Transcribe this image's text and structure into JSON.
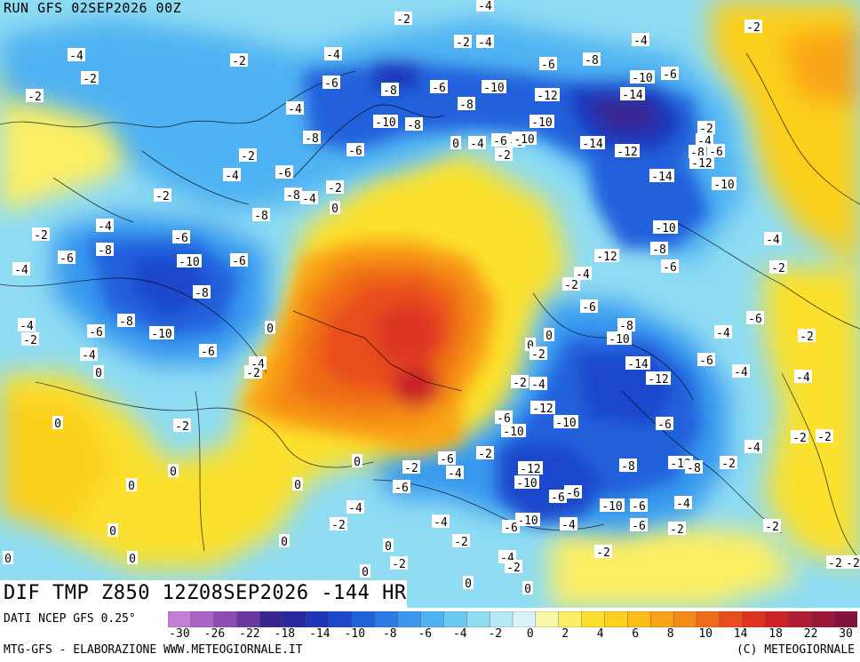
{
  "header": {
    "run_label": "RUN GFS 02SEP2026 00Z"
  },
  "map_title": "DIF TMP Z850 12Z08SEP2026 -144 HR",
  "source": "DATI NCEP GFS 0.25°",
  "footer": {
    "left": "MTG-GFS - ELABORAZIONE WWW.METEOGIORNALE.IT",
    "right": "(C) METEOGIORNALE"
  },
  "legend": {
    "tick_labels": [
      "-30",
      "-26",
      "-22",
      "-18",
      "-14",
      "-10",
      "-8",
      "-6",
      "-4",
      "-2",
      "0",
      "2",
      "4",
      "6",
      "8",
      "10",
      "14",
      "18",
      "22",
      "30"
    ],
    "colors": [
      "#c27fd6",
      "#a864c7",
      "#8f4bb5",
      "#6a37a0",
      "#3a2590",
      "#28289e",
      "#1f35b8",
      "#1d47cc",
      "#2060dc",
      "#2a7be6",
      "#3998ee",
      "#4fb2f2",
      "#6bcaf3",
      "#8fdcf3",
      "#b5eaf6",
      "#d8f4f8",
      "#fbf7a8",
      "#fbee63",
      "#fbe12d",
      "#fbd01f",
      "#fbbc1a",
      "#f9a417",
      "#f58a17",
      "#ef6c19",
      "#e84e1c",
      "#dc3420",
      "#ca2428",
      "#b21c32",
      "#9c1638",
      "#83123c"
    ]
  },
  "contour_labels": [
    {
      "t": "-4",
      "p": [
        546,
        6
      ]
    },
    {
      "t": "-2",
      "p": [
        454,
        21
      ]
    },
    {
      "t": "-2",
      "p": [
        848,
        30
      ]
    },
    {
      "t": "-2",
      "p": [
        521,
        47
      ]
    },
    {
      "t": "-4",
      "p": [
        546,
        47
      ]
    },
    {
      "t": "-4",
      "p": [
        721,
        45
      ]
    },
    {
      "t": "-4",
      "p": [
        86,
        62
      ]
    },
    {
      "t": "-2",
      "p": [
        269,
        68
      ]
    },
    {
      "t": "-4",
      "p": [
        375,
        61
      ]
    },
    {
      "t": "-6",
      "p": [
        617,
        72
      ]
    },
    {
      "t": "-8",
      "p": [
        666,
        67
      ]
    },
    {
      "t": "-2",
      "p": [
        101,
        88
      ]
    },
    {
      "t": "-10",
      "p": [
        723,
        87
      ]
    },
    {
      "t": "-6",
      "p": [
        754,
        83
      ]
    },
    {
      "t": "-6",
      "p": [
        373,
        93
      ]
    },
    {
      "t": "-8",
      "p": [
        439,
        101
      ]
    },
    {
      "t": "-6",
      "p": [
        494,
        98
      ]
    },
    {
      "t": "-10",
      "p": [
        556,
        98
      ]
    },
    {
      "t": "-12",
      "p": [
        616,
        107
      ]
    },
    {
      "t": "-14",
      "p": [
        712,
        106
      ]
    },
    {
      "t": "-2",
      "p": [
        39,
        108
      ]
    },
    {
      "t": "-8",
      "p": [
        525,
        117
      ]
    },
    {
      "t": "-4",
      "p": [
        332,
        122
      ]
    },
    {
      "t": "-10",
      "p": [
        434,
        137
      ]
    },
    {
      "t": "-8",
      "p": [
        466,
        140
      ]
    },
    {
      "t": "-10",
      "p": [
        610,
        137
      ]
    },
    {
      "t": "-2",
      "p": [
        795,
        144
      ]
    },
    {
      "t": "-8",
      "p": [
        351,
        155
      ]
    },
    {
      "t": "-4",
      "p": [
        793,
        158
      ]
    },
    {
      "t": "0",
      "p": [
        513,
        161
      ]
    },
    {
      "t": "-4",
      "p": [
        537,
        161
      ]
    },
    {
      "t": "-6",
      "p": [
        563,
        158
      ]
    },
    {
      "t": "-8",
      "p": [
        581,
        159
      ]
    },
    {
      "t": "-10",
      "p": [
        590,
        156
      ]
    },
    {
      "t": "-14",
      "p": [
        667,
        161
      ]
    },
    {
      "t": "-12",
      "p": [
        706,
        170
      ]
    },
    {
      "t": "-8",
      "p": [
        785,
        171
      ]
    },
    {
      "t": "-6",
      "p": [
        806,
        170
      ]
    },
    {
      "t": "-2",
      "p": [
        567,
        174
      ]
    },
    {
      "t": "-6",
      "p": [
        400,
        169
      ]
    },
    {
      "t": "-12",
      "p": [
        790,
        183
      ]
    },
    {
      "t": "-2",
      "p": [
        279,
        175
      ]
    },
    {
      "t": "-6",
      "p": [
        320,
        194
      ]
    },
    {
      "t": "-4",
      "p": [
        261,
        197
      ]
    },
    {
      "t": "-14",
      "p": [
        745,
        198
      ]
    },
    {
      "t": "-10",
      "p": [
        815,
        207
      ]
    },
    {
      "t": "-2",
      "p": [
        377,
        211
      ]
    },
    {
      "t": "-8",
      "p": [
        330,
        219
      ]
    },
    {
      "t": "-4",
      "p": [
        348,
        223
      ]
    },
    {
      "t": "-2",
      "p": [
        183,
        220
      ]
    },
    {
      "t": "0",
      "p": [
        377,
        234
      ]
    },
    {
      "t": "-8",
      "p": [
        294,
        242
      ]
    },
    {
      "t": "-4",
      "p": [
        118,
        254
      ]
    },
    {
      "t": "-10",
      "p": [
        749,
        256
      ]
    },
    {
      "t": "-2",
      "p": [
        46,
        264
      ]
    },
    {
      "t": "-6",
      "p": [
        204,
        267
      ]
    },
    {
      "t": "-4",
      "p": [
        870,
        269
      ]
    },
    {
      "t": "-8",
      "p": [
        118,
        281
      ]
    },
    {
      "t": "-8",
      "p": [
        742,
        280
      ]
    },
    {
      "t": "-6",
      "p": [
        75,
        290
      ]
    },
    {
      "t": "-10",
      "p": [
        213,
        294
      ]
    },
    {
      "t": "-6",
      "p": [
        269,
        293
      ]
    },
    {
      "t": "-12",
      "p": [
        683,
        288
      ]
    },
    {
      "t": "-6",
      "p": [
        754,
        300
      ]
    },
    {
      "t": "-2",
      "p": [
        876,
        301
      ]
    },
    {
      "t": "-4",
      "p": [
        24,
        303
      ]
    },
    {
      "t": "-4",
      "p": [
        656,
        308
      ]
    },
    {
      "t": "-2",
      "p": [
        643,
        320
      ]
    },
    {
      "t": "-8",
      "p": [
        227,
        329
      ]
    },
    {
      "t": "-6",
      "p": [
        663,
        345
      ]
    },
    {
      "t": "-6",
      "p": [
        850,
        358
      ]
    },
    {
      "t": "-4",
      "p": [
        30,
        366
      ]
    },
    {
      "t": "-8",
      "p": [
        142,
        361
      ]
    },
    {
      "t": "-8",
      "p": [
        705,
        366
      ]
    },
    {
      "t": "-6",
      "p": [
        108,
        373
      ]
    },
    {
      "t": "-10",
      "p": [
        182,
        375
      ]
    },
    {
      "t": "0",
      "p": [
        304,
        369
      ]
    },
    {
      "t": "-4",
      "p": [
        814,
        374
      ]
    },
    {
      "t": "-2",
      "p": [
        908,
        378
      ]
    },
    {
      "t": "-2",
      "p": [
        34,
        382
      ]
    },
    {
      "t": "-10",
      "p": [
        697,
        381
      ]
    },
    {
      "t": "0",
      "p": [
        618,
        377
      ]
    },
    {
      "t": "0",
      "p": [
        597,
        388
      ]
    },
    {
      "t": "-6",
      "p": [
        234,
        395
      ]
    },
    {
      "t": "-4",
      "p": [
        100,
        399
      ]
    },
    {
      "t": "-2",
      "p": [
        606,
        398
      ]
    },
    {
      "t": "-6",
      "p": [
        795,
        405
      ]
    },
    {
      "t": "-14",
      "p": [
        718,
        409
      ]
    },
    {
      "t": "-4",
      "p": [
        290,
        409
      ]
    },
    {
      "t": "0",
      "p": [
        111,
        419
      ]
    },
    {
      "t": "-2",
      "p": [
        285,
        419
      ]
    },
    {
      "t": "-4",
      "p": [
        834,
        418
      ]
    },
    {
      "t": "-12",
      "p": [
        741,
        426
      ]
    },
    {
      "t": "-4",
      "p": [
        904,
        424
      ]
    },
    {
      "t": "-2",
      "p": [
        585,
        430
      ]
    },
    {
      "t": "-4",
      "p": [
        606,
        432
      ]
    },
    {
      "t": "-12",
      "p": [
        611,
        459
      ]
    },
    {
      "t": "-6",
      "p": [
        567,
        470
      ]
    },
    {
      "t": "0",
      "p": [
        65,
        476
      ]
    },
    {
      "t": "-2",
      "p": [
        205,
        479
      ]
    },
    {
      "t": "-10",
      "p": [
        637,
        475
      ]
    },
    {
      "t": "-6",
      "p": [
        748,
        477
      ]
    },
    {
      "t": "-10",
      "p": [
        578,
        485
      ]
    },
    {
      "t": "-2",
      "p": [
        900,
        492
      ]
    },
    {
      "t": "-2",
      "p": [
        928,
        491
      ]
    },
    {
      "t": "-4",
      "p": [
        848,
        503
      ]
    },
    {
      "t": "-2",
      "p": [
        546,
        510
      ]
    },
    {
      "t": "-6",
      "p": [
        503,
        516
      ]
    },
    {
      "t": "0",
      "p": [
        402,
        519
      ]
    },
    {
      "t": "-2",
      "p": [
        820,
        521
      ]
    },
    {
      "t": "-8",
      "p": [
        707,
        524
      ]
    },
    {
      "t": "-10",
      "p": [
        766,
        521
      ]
    },
    {
      "t": "-8",
      "p": [
        781,
        526
      ]
    },
    {
      "t": "-2",
      "p": [
        463,
        526
      ]
    },
    {
      "t": "-4",
      "p": [
        512,
        532
      ]
    },
    {
      "t": "-12",
      "p": [
        597,
        527
      ]
    },
    {
      "t": "0",
      "p": [
        195,
        530
      ]
    },
    {
      "t": "-10",
      "p": [
        593,
        543
      ]
    },
    {
      "t": "0",
      "p": [
        335,
        545
      ]
    },
    {
      "t": "-6",
      "p": [
        452,
        548
      ]
    },
    {
      "t": "0",
      "p": [
        148,
        546
      ]
    },
    {
      "t": "-6",
      "p": [
        645,
        554
      ]
    },
    {
      "t": "-6",
      "p": [
        628,
        559
      ]
    },
    {
      "t": "-4",
      "p": [
        400,
        571
      ]
    },
    {
      "t": "-10",
      "p": [
        689,
        569
      ]
    },
    {
      "t": "-6",
      "p": [
        719,
        569
      ]
    },
    {
      "t": "-4",
      "p": [
        769,
        566
      ]
    },
    {
      "t": "-4",
      "p": [
        496,
        587
      ]
    },
    {
      "t": "-10",
      "p": [
        594,
        585
      ]
    },
    {
      "t": "-6",
      "p": [
        575,
        593
      ]
    },
    {
      "t": "-4",
      "p": [
        640,
        590
      ]
    },
    {
      "t": "-6",
      "p": [
        719,
        591
      ]
    },
    {
      "t": "-2",
      "p": [
        762,
        595
      ]
    },
    {
      "t": "-2",
      "p": [
        869,
        592
      ]
    },
    {
      "t": "-2",
      "p": [
        381,
        590
      ]
    },
    {
      "t": "0",
      "p": [
        127,
        597
      ]
    },
    {
      "t": "-2",
      "p": [
        519,
        609
      ]
    },
    {
      "t": "0",
      "p": [
        320,
        609
      ]
    },
    {
      "t": "0",
      "p": [
        437,
        614
      ]
    },
    {
      "t": "-2",
      "p": [
        679,
        621
      ]
    },
    {
      "t": "-4",
      "p": [
        571,
        627
      ]
    },
    {
      "t": "-2",
      "p": [
        940,
        633
      ]
    },
    {
      "t": "0",
      "p": [
        9,
        628
      ]
    },
    {
      "t": "0",
      "p": [
        149,
        628
      ]
    },
    {
      "t": "-2",
      "p": [
        449,
        634
      ]
    },
    {
      "t": "-2",
      "p": [
        578,
        638
      ]
    },
    {
      "t": "-2",
      "p": [
        960,
        633
      ]
    },
    {
      "t": "0",
      "p": [
        411,
        643
      ]
    },
    {
      "t": "0",
      "p": [
        527,
        656
      ]
    },
    {
      "t": "0",
      "p": [
        594,
        662
      ]
    }
  ]
}
